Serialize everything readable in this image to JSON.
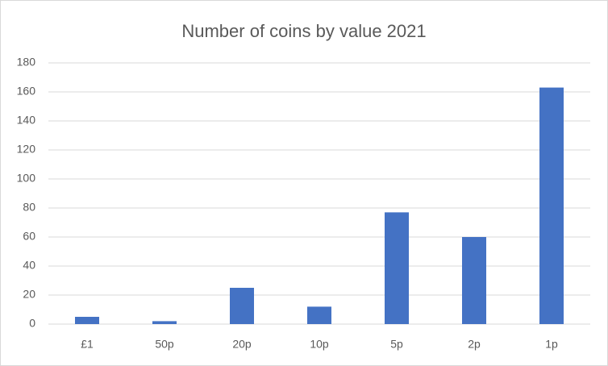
{
  "chart_data": {
    "type": "bar",
    "title": "Number of coins by value 2021",
    "categories": [
      "£1",
      "50p",
      "20p",
      "10p",
      "5p",
      "2p",
      "1p"
    ],
    "values": [
      5,
      2,
      25,
      12,
      77,
      60,
      163
    ],
    "color": "#4472c4",
    "ylim": [
      0,
      180
    ],
    "yticks": [
      0,
      20,
      40,
      60,
      80,
      100,
      120,
      140,
      160,
      180
    ],
    "grid": true
  }
}
